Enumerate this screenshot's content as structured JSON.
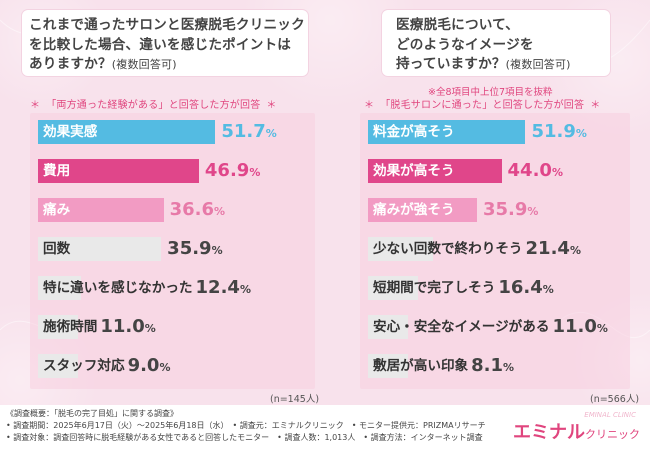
{
  "colors": {
    "blue": "#54bbe2",
    "magenta": "#e0468a",
    "pink": "#f29bc3",
    "gray": "#e9e9e9",
    "brand": "#e0457e"
  },
  "left": {
    "question_main": "これまで通ったサロンと医療脱毛クリニック\nを比較した場合、違いを感じたポイントは\nありますか？",
    "question_suffix": "(複数回答可)",
    "subtitle": "「両方通った経験がある」と回答した方が回答",
    "star": "＊",
    "n_note": "(n=145人)"
  },
  "right": {
    "question_main": "医療脱毛について、\nどのようなイメージを\n持っていますか？",
    "question_suffix": "(複数回答可)",
    "note": "※全8項目中上位7項目を抜粋",
    "subtitle": "「脱毛サロンに通った」と回答した方が回答",
    "star": "＊",
    "n_note": "(n=566人)"
  },
  "chart_data": [
    {
      "type": "bar",
      "orientation": "horizontal",
      "title": "これまで通ったサロンと医療脱毛クリニックを比較した場合、違いを感じたポイントはありますか？(複数回答可)",
      "categories": [
        "効果実感",
        "費用",
        "痛み",
        "回数",
        "特に違いを感じなかった",
        "施術時間",
        "スタッフ対応"
      ],
      "values": [
        51.7,
        46.9,
        36.6,
        35.9,
        12.4,
        11.0,
        9.0
      ],
      "value_labels": [
        "51.7",
        "46.9",
        "36.6",
        "35.9",
        "12.4",
        "11.0",
        "9.0"
      ],
      "unit": "%",
      "bar_colors": [
        "#54bbe2",
        "#e0468a",
        "#f29bc3",
        "#e9e9e9",
        "#e9e9e9",
        "#e9e9e9",
        "#e9e9e9"
      ],
      "label_colors": [
        "#ffffff",
        "#ffffff",
        "#ffffff",
        "#333333",
        "#333333",
        "#333333",
        "#333333"
      ],
      "value_colors": [
        "#54bbe2",
        "#e0468a",
        "#e77aa8",
        "#444444",
        "#444444",
        "#444444",
        "#444444"
      ],
      "xlim": [
        0,
        100
      ],
      "grid": false,
      "legend": "none"
    },
    {
      "type": "bar",
      "orientation": "horizontal",
      "title": "医療脱毛について、どのようなイメージを持っていますか？(複数回答可)",
      "categories": [
        "料金が高そう",
        "効果が高そう",
        "痛みが強そう",
        "少ない回数で終わりそう",
        "短期間で完了しそう",
        "安心・安全なイメージがある",
        "敷居が高い印象"
      ],
      "values": [
        51.9,
        44.0,
        35.9,
        21.4,
        16.4,
        11.0,
        8.1
      ],
      "value_labels": [
        "51.9",
        "44.0",
        "35.9",
        "21.4",
        "16.4",
        "11.0",
        "8.1"
      ],
      "unit": "%",
      "bar_colors": [
        "#54bbe2",
        "#e0468a",
        "#f29bc3",
        "#e9e9e9",
        "#e9e9e9",
        "#e9e9e9",
        "#e9e9e9"
      ],
      "label_colors": [
        "#ffffff",
        "#ffffff",
        "#ffffff",
        "#333333",
        "#333333",
        "#333333",
        "#333333"
      ],
      "value_colors": [
        "#54bbe2",
        "#e0468a",
        "#e77aa8",
        "#444444",
        "#444444",
        "#444444",
        "#444444"
      ],
      "xlim": [
        0,
        100
      ],
      "grid": false,
      "legend": "none"
    }
  ],
  "footer": {
    "line1": "《調査概要：「脱毛の完了目処」に関する調査》",
    "line2": "• 調査期間：2025年6月17日（火）〜2025年6月18日（水）　• 調査元：エミナルクリニック　• モニター提供元：PRIZMAリサーチ",
    "line3": "• 調査対象：調査回答時に脱毛経験がある女性であると回答したモニター　• 調査人数：1,013人　• 調査方法：インターネット調査",
    "logo_main": "エミナル",
    "logo_sub": "クリニック",
    "logo_watermark": "EMINAL CLINIC"
  }
}
